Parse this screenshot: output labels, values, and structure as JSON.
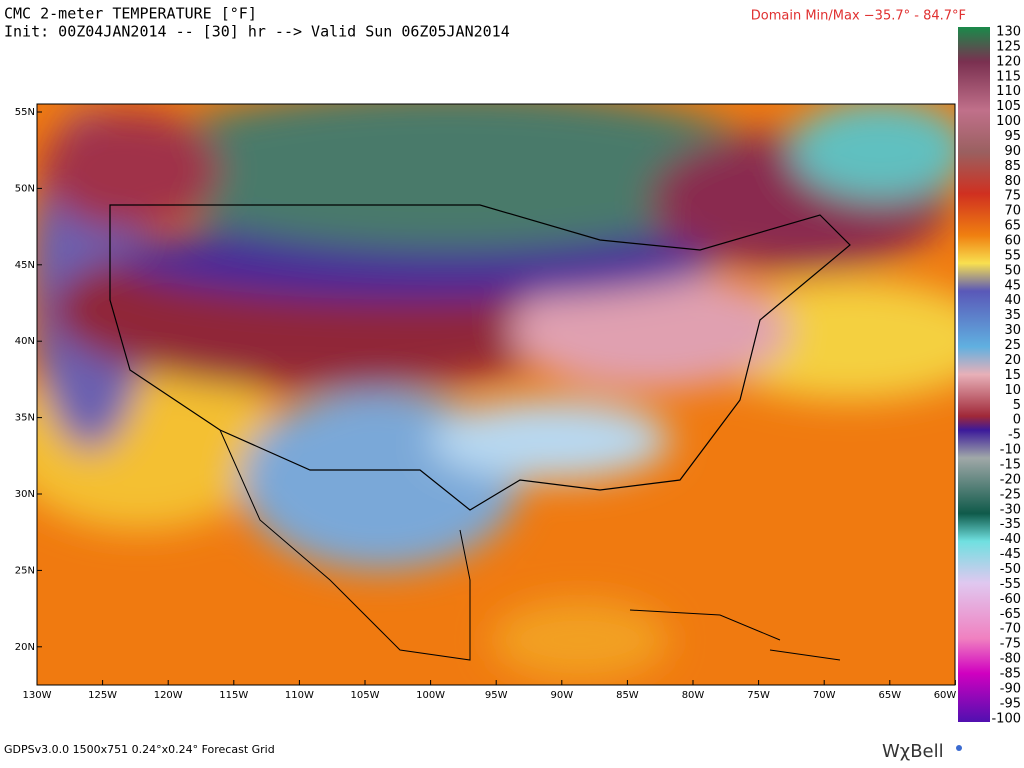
{
  "header": {
    "title": "CMC 2-meter TEMPERATURE [°F]",
    "subtitle": "Init: 00Z04JAN2014 -- [30] hr --> Valid Sun 06Z05JAN2014",
    "domain": "Domain Min/Max −35.7° -  84.7°F"
  },
  "map": {
    "lat_labels": [
      "55N",
      "50N",
      "45N",
      "40N",
      "35N",
      "30N",
      "25N",
      "20N"
    ],
    "lon_labels": [
      "130W",
      "125W",
      "120W",
      "115W",
      "110W",
      "105W",
      "100W",
      "95W",
      "90W",
      "85W",
      "80W",
      "75W",
      "70W",
      "65W",
      "60W"
    ]
  },
  "colorbar": {
    "labels": [
      "130",
      "125",
      "120",
      "115",
      "110",
      "105",
      "100",
      "95",
      "90",
      "85",
      "80",
      "75",
      "70",
      "65",
      "60",
      "55",
      "50",
      "45",
      "40",
      "35",
      "30",
      "25",
      "20",
      "15",
      "10",
      "5",
      "0",
      "-5",
      "-10",
      "-15",
      "-20",
      "-25",
      "-30",
      "-35",
      "-40",
      "-45",
      "-50",
      "-55",
      "-60",
      "-65",
      "-70",
      "-75",
      "-80",
      "-85",
      "-90",
      "-95",
      "-100"
    ]
  },
  "footer": {
    "grid": "GDPSv3.0.0 1500x751 0.24°x0.24° Forecast Grid",
    "brand": "WχBell"
  }
}
